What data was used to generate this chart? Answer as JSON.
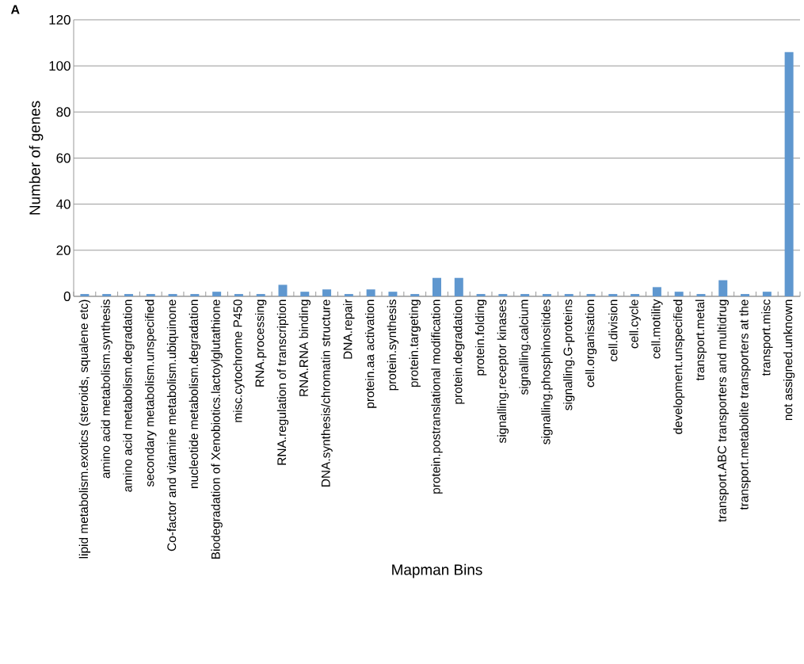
{
  "chart_data": {
    "type": "bar",
    "title": "A",
    "xlabel": "Mapman Bins",
    "ylabel": "Number of genes",
    "categories": [
      "lipid metabolism.exotics (steroids, squalene etc)",
      "amino acid metabolism.synthesis",
      "amino acid metabolism.degradation",
      "secondary metabolism.unspecified",
      "Co-factor and vitamine metabolism.ubiquinone",
      "nucleotide metabolism.degradation",
      "Biodegradation of Xenobiotics.lactoylglutathione",
      "misc.cytochrome P450",
      "RNA.processing",
      "RNA.regulation of transcription",
      "RNA.RNA binding",
      "DNA.synthesis/chromatin structure",
      "DNA.repair",
      "protein.aa activation",
      "protein.synthesis",
      "protein.targeting",
      "protein.postranslational modification",
      "protein.degradation",
      "protein.folding",
      "signalling.receptor kinases",
      "signalling.calcium",
      "signalling.phosphinositides",
      "signalling.G-proteins",
      "cell.organisation",
      "cell.division",
      "cell.cycle",
      "cell.motility",
      "development.unspecified",
      "transport.metal",
      "transport.ABC transporters and multidrug",
      "transport.metabolite transporters at the",
      "transport.misc",
      "not assigned.unknown"
    ],
    "values": [
      1,
      1,
      1,
      1,
      1,
      1,
      2,
      1,
      1,
      5,
      2,
      3,
      1,
      3,
      2,
      1,
      8,
      8,
      1,
      1,
      1,
      1,
      1,
      1,
      1,
      1,
      4,
      2,
      1,
      7,
      1,
      2,
      106
    ],
    "color": "#5f97cf",
    "ylim": [
      0,
      120
    ],
    "yticks": [
      0,
      20,
      40,
      60,
      80,
      100,
      120
    ],
    "grid": "y"
  }
}
